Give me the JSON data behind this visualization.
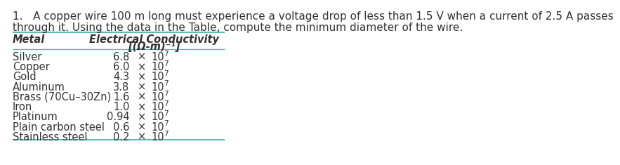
{
  "problem_text_line1": "1.   A copper wire 100 m long must experience a voltage drop of less than 1.5 V when a current of 2.5 A passes",
  "problem_text_line2": "through it. Using the data in the Table, compute the minimum diameter of the wire.",
  "col_header_1": "Metal",
  "col_header_2_line1": "Electrical Conductivity",
  "col_header_2_line2": "[(Ω-m)⁻¹]",
  "metals": [
    "Silver",
    "Copper",
    "Gold",
    "Aluminum",
    "Brass (70Cu–30Zn)",
    "Iron",
    "Platinum",
    "Plain carbon steel",
    "Stainless steel"
  ],
  "conductivity_mantissa": [
    "6.8",
    "6.0",
    "4.3",
    "3.8",
    "1.6",
    "1.0",
    "0.94",
    "0.6",
    "0.2"
  ],
  "conductivity_exp": [
    "7",
    "7",
    "7",
    "7",
    "7",
    "7",
    "7",
    "7",
    "7"
  ],
  "bg_color": "#ffffff",
  "text_color": "#333333",
  "table_line_color": "#5bbcb8",
  "font_size_problem": 11.0,
  "font_size_table": 10.5,
  "font_size_header": 10.5,
  "font_size_super": 7.5
}
